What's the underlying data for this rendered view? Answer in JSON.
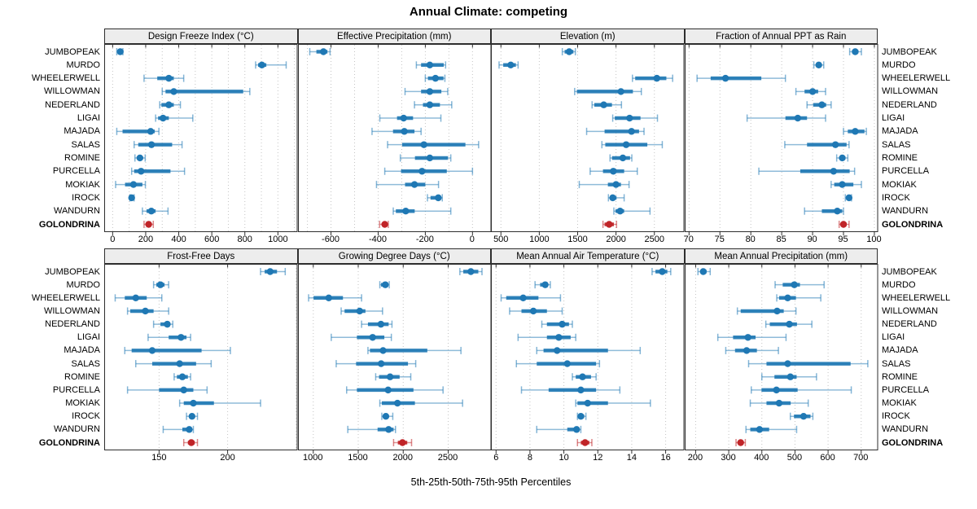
{
  "title": "Annual Climate: competing",
  "caption": "5th-25th-50th-75th-95th Percentiles",
  "colors": {
    "series": "#1f78b4",
    "highlight": "#c02428",
    "strip_bg": "#ededed",
    "grid_line": "#c4c4c4",
    "border": "#2e2e2e"
  },
  "stations": [
    "JUMBOPEAK",
    "MURDO",
    "WHEELERWELL",
    "WILLOWMAN",
    "NEDERLAND",
    "LIGAI",
    "MAJADA",
    "SALAS",
    "ROMINE",
    "PURCELLA",
    "MOKIAK",
    "IROCK",
    "WANDURN",
    "GOLONDRINA"
  ],
  "highlight_station": "GOLONDRINA",
  "chart_data": {
    "type": "dotplot",
    "subtype": "percentile-whisker",
    "percentiles": [
      5,
      25,
      50,
      75,
      95
    ],
    "layout": {
      "rows": 2,
      "cols": 4,
      "grid": "dotted",
      "legend": "none"
    },
    "panels": [
      {
        "title": "Design Freeze Index (°C)",
        "xlim": [
          -51,
          1119
        ],
        "ticks": [
          0,
          200,
          400,
          600,
          800,
          1000
        ],
        "grid": [
          0,
          100,
          200,
          300,
          400,
          500,
          600,
          700,
          800,
          900,
          1000,
          1100
        ],
        "values": [
          [
            25,
            35,
            46,
            55,
            62
          ],
          [
            865,
            880,
            903,
            930,
            1050
          ],
          [
            190,
            270,
            340,
            370,
            430
          ],
          [
            300,
            320,
            370,
            790,
            830
          ],
          [
            285,
            295,
            340,
            370,
            410
          ],
          [
            260,
            275,
            305,
            340,
            485
          ],
          [
            25,
            60,
            230,
            255,
            280
          ],
          [
            130,
            155,
            235,
            360,
            420
          ],
          [
            135,
            150,
            165,
            180,
            197
          ],
          [
            115,
            130,
            172,
            350,
            435
          ],
          [
            18,
            75,
            126,
            180,
            198
          ],
          [
            105,
            110,
            115,
            121,
            130
          ],
          [
            180,
            205,
            234,
            260,
            335
          ],
          [
            190,
            205,
            218,
            232,
            246
          ]
        ]
      },
      {
        "title": "Effective Precipitation (mm)",
        "xlim": [
          -740,
          80
        ],
        "ticks": [
          -600,
          -400,
          -200,
          0
        ],
        "grid": [
          -700,
          -600,
          -500,
          -400,
          -300,
          -200,
          -100,
          0
        ],
        "values": [
          [
            -690,
            -662,
            -632,
            -615,
            -604
          ],
          [
            -238,
            -218,
            -181,
            -122,
            -114
          ],
          [
            -200,
            -189,
            -157,
            -123,
            -117
          ],
          [
            -286,
            -218,
            -181,
            -132,
            -105
          ],
          [
            -246,
            -210,
            -181,
            -138,
            -88
          ],
          [
            -393,
            -320,
            -292,
            -252,
            -134
          ],
          [
            -426,
            -337,
            -289,
            -246,
            -218
          ],
          [
            -360,
            -298,
            -206,
            -30,
            26
          ],
          [
            -306,
            -244,
            -181,
            -104,
            -92
          ],
          [
            -372,
            -303,
            -214,
            -109,
            0
          ],
          [
            -407,
            -286,
            -246,
            -200,
            -144
          ],
          [
            -191,
            -178,
            -145,
            -134,
            -128
          ],
          [
            -336,
            -325,
            -283,
            -245,
            -92
          ],
          [
            -394,
            -384,
            -372,
            -363,
            -357
          ]
        ]
      },
      {
        "title": "Elevation (m)",
        "xlim": [
          370,
          2890
        ],
        "ticks": [
          500,
          1000,
          1500,
          2000,
          2500
        ],
        "grid": [
          500,
          1000,
          1500,
          2000,
          2500
        ],
        "values": [
          [
            1300,
            1330,
            1390,
            1445,
            1470
          ],
          [
            476,
            530,
            628,
            695,
            724
          ],
          [
            2214,
            2250,
            2532,
            2656,
            2738
          ],
          [
            1461,
            1490,
            2064,
            2220,
            2330
          ],
          [
            1688,
            1717,
            1840,
            1947,
            2071
          ],
          [
            1957,
            1984,
            2177,
            2319,
            2540
          ],
          [
            1617,
            1851,
            2202,
            2300,
            2365
          ],
          [
            1816,
            1860,
            2132,
            2408,
            2603
          ],
          [
            1922,
            1948,
            2089,
            2183,
            2206
          ],
          [
            1663,
            1830,
            1965,
            2106,
            2277
          ],
          [
            1521,
            1894,
            2000,
            2064,
            2170
          ],
          [
            1901,
            1922,
            1957,
            2007,
            2106
          ],
          [
            1972,
            1993,
            2053,
            2106,
            2443
          ],
          [
            1830,
            1851,
            1911,
            1972,
            2007
          ]
        ]
      },
      {
        "title": "Fraction of Annual PPT as Rain",
        "xlim": [
          69.3,
          100.6
        ],
        "ticks": [
          70,
          75,
          80,
          85,
          90,
          95,
          100
        ],
        "grid": [
          70,
          75,
          80,
          85,
          90,
          95,
          100
        ],
        "values": [
          [
            96.0,
            96.4,
            96.9,
            97.4,
            97.9
          ],
          [
            90.2,
            90.6,
            91.0,
            91.4,
            91.8
          ],
          [
            71.3,
            73.5,
            75.9,
            81.7,
            85.6
          ],
          [
            87.3,
            88.7,
            90.0,
            90.9,
            92.1
          ],
          [
            89.1,
            90.1,
            91.5,
            92.2,
            93.0
          ],
          [
            79.4,
            85.6,
            87.6,
            89.1,
            92.1
          ],
          [
            95.0,
            95.7,
            96.9,
            98.4,
            98.7
          ],
          [
            85.5,
            89.1,
            93.7,
            95.5,
            95.9
          ],
          [
            93.9,
            94.4,
            94.8,
            95.3,
            95.7
          ],
          [
            81.3,
            88.0,
            93.4,
            96.0,
            96.8
          ],
          [
            93.0,
            93.5,
            94.8,
            96.6,
            97.9
          ],
          [
            95.3,
            95.6,
            95.9,
            96.1,
            96.3
          ],
          [
            88.7,
            91.5,
            94.0,
            94.8,
            95.0
          ],
          [
            94.3,
            94.7,
            95.0,
            95.5,
            95.9
          ]
        ]
      },
      {
        "title": "Frost-Free Days",
        "xlim": [
          110,
          251
        ],
        "ticks": [
          150,
          200
        ],
        "grid": [
          150,
          200,
          250
        ],
        "values": [
          [
            224,
            227,
            231,
            236,
            242
          ],
          [
            146,
            148,
            151,
            154,
            157
          ],
          [
            118,
            125,
            133,
            141,
            152
          ],
          [
            127,
            129,
            140,
            146,
            157
          ],
          [
            146,
            151,
            156,
            158,
            160
          ],
          [
            142,
            157,
            166,
            170,
            173
          ],
          [
            125,
            130,
            145,
            181,
            202
          ],
          [
            133,
            145,
            165,
            177,
            188
          ],
          [
            161,
            163,
            167,
            171,
            173
          ],
          [
            127,
            150,
            168,
            175,
            185
          ],
          [
            165,
            168,
            175,
            190,
            224
          ],
          [
            170,
            172,
            174,
            176,
            178
          ],
          [
            153,
            167,
            172,
            173.5,
            175
          ],
          [
            168,
            171,
            173.5,
            176,
            178
          ]
        ]
      },
      {
        "title": "Growing Degree Days (°C)",
        "xlim": [
          830,
          2980
        ],
        "ticks": [
          1000,
          1500,
          2000,
          2500
        ],
        "grid": [
          1000,
          1500,
          2000,
          2500
        ],
        "values": [
          [
            2630,
            2668,
            2752,
            2835,
            2876
          ],
          [
            1740,
            1753,
            1801,
            1836,
            1845
          ],
          [
            948,
            1003,
            1172,
            1330,
            1537
          ],
          [
            1310,
            1348,
            1516,
            1580,
            1770
          ],
          [
            1537,
            1608,
            1752,
            1838,
            1875
          ],
          [
            1200,
            1485,
            1660,
            1790,
            1868
          ],
          [
            1608,
            1630,
            1776,
            2268,
            2642
          ],
          [
            1255,
            1476,
            1755,
            2053,
            2139
          ],
          [
            1694,
            1731,
            1854,
            1960,
            2084
          ],
          [
            1371,
            1485,
            1832,
            2114,
            2443
          ],
          [
            1740,
            1762,
            1936,
            2130,
            2660
          ],
          [
            1762,
            1781,
            1807,
            1836,
            1884
          ],
          [
            1384,
            1715,
            1838,
            1893,
            1914
          ],
          [
            1893,
            1940,
            1992,
            2045,
            2093
          ]
        ]
      },
      {
        "title": "Mean Annual Air Temperature (°C)",
        "xlim": [
          5.7,
          17.1
        ],
        "ticks": [
          6,
          8,
          10,
          12,
          14,
          16
        ],
        "grid": [
          6,
          8,
          10,
          12,
          14,
          16
        ],
        "values": [
          [
            15.2,
            15.4,
            15.8,
            16.1,
            16.3
          ],
          [
            8.3,
            8.6,
            8.9,
            9.0,
            9.2
          ],
          [
            6.3,
            6.6,
            7.6,
            8.5,
            9.8
          ],
          [
            6.8,
            7.5,
            8.2,
            9.0,
            9.9
          ],
          [
            8.7,
            9.0,
            9.9,
            10.3,
            10.5
          ],
          [
            7.3,
            9.0,
            9.7,
            10.4,
            10.7
          ],
          [
            8.4,
            8.8,
            9.6,
            12.6,
            14.5
          ],
          [
            7.2,
            8.4,
            10.2,
            11.9,
            12.1
          ],
          [
            10.5,
            10.7,
            11.1,
            11.6,
            11.9
          ],
          [
            7.5,
            9.1,
            11.0,
            11.9,
            13.3
          ],
          [
            10.7,
            10.8,
            11.4,
            12.6,
            15.1
          ],
          [
            10.8,
            10.9,
            11.0,
            11.2,
            11.3
          ],
          [
            8.4,
            10.2,
            10.75,
            10.9,
            11.0
          ],
          [
            10.8,
            11.0,
            11.25,
            11.5,
            11.65
          ]
        ]
      },
      {
        "title": "Mean Annual Precipitation (mm)",
        "xlim": [
          167,
          751
        ],
        "ticks": [
          200,
          300,
          400,
          500,
          600,
          700
        ],
        "grid": [
          200,
          300,
          400,
          500,
          600,
          700
        ],
        "values": [
          [
            207,
            215,
            223,
            233,
            244
          ],
          [
            440,
            463,
            498,
            515,
            588
          ],
          [
            445,
            452,
            478,
            503,
            578
          ],
          [
            326,
            336,
            446,
            466,
            503
          ],
          [
            412,
            424,
            483,
            506,
            551
          ],
          [
            267,
            313,
            358,
            381,
            473
          ],
          [
            291,
            319,
            354,
            385,
            450
          ],
          [
            360,
            414,
            478,
            668,
            720
          ],
          [
            400,
            438,
            486,
            505,
            565
          ],
          [
            368,
            399,
            444,
            508,
            670
          ],
          [
            365,
            414,
            452,
            487,
            540
          ],
          [
            486,
            497,
            526,
            547,
            554
          ],
          [
            352,
            365,
            393,
            422,
            505
          ],
          [
            322,
            329,
            336,
            344,
            350
          ]
        ]
      }
    ]
  }
}
